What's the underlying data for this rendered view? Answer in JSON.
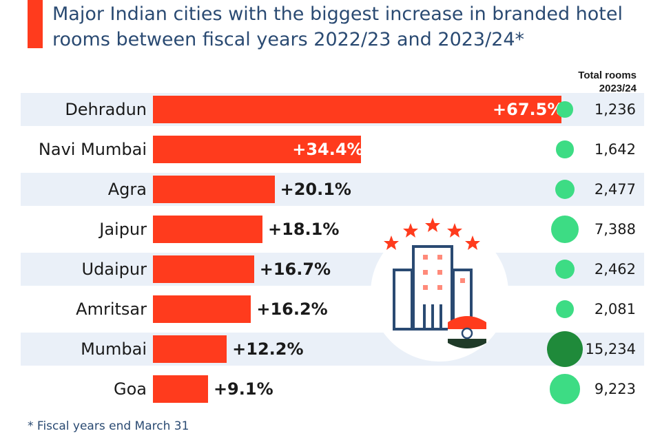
{
  "title": "Major Indian cities with the biggest increase in branded hotel rooms between fiscal years 2022/23 and 2023/24*",
  "column_header": "Total rooms 2023/24",
  "footnote": "* Fiscal years end March 31",
  "colors": {
    "bar": "#ff3b1d",
    "title": "#2a4a72",
    "dot_light": "#3ddc84",
    "dot_dark": "#1f8a3a",
    "row_band": "#eaf0f8"
  },
  "illustration": "hotel-building-with-stars-and-india-flag-icon",
  "chart_data": {
    "type": "bar",
    "orientation": "horizontal",
    "categories": [
      "Dehradun",
      "Navi Mumbai",
      "Agra",
      "Jaipur",
      "Udaipur",
      "Amritsar",
      "Mumbai",
      "Goa"
    ],
    "values": [
      67.5,
      34.4,
      20.1,
      18.1,
      16.7,
      16.2,
      12.2,
      9.1
    ],
    "value_labels": [
      "+67.5%",
      "+34.4%",
      "+20.1%",
      "+18.1%",
      "+16.7%",
      "+16.2%",
      "+12.2%",
      "+9.1%"
    ],
    "total_rooms": [
      1236,
      1642,
      2477,
      7388,
      2462,
      2081,
      15234,
      9223
    ],
    "total_rooms_labels": [
      "1,236",
      "1,642",
      "2,477",
      "7,388",
      "2,462",
      "2,081",
      "15,234",
      "9,223"
    ],
    "xlim": [
      0,
      70
    ],
    "grid": false,
    "legend": "none"
  }
}
